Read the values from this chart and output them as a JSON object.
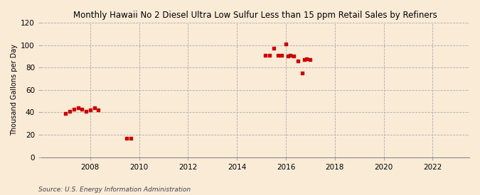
{
  "title": "Monthly Hawaii No 2 Diesel Ultra Low Sulfur Less than 15 ppm Retail Sales by Refiners",
  "ylabel": "Thousand Gallons per Day",
  "source": "Source: U.S. Energy Information Administration",
  "background_color": "#faebd7",
  "plot_bg_color": "#faebd7",
  "point_color": "#cc0000",
  "marker": "s",
  "marker_size": 3,
  "xlim": [
    2006.0,
    2023.5
  ],
  "ylim": [
    0,
    120
  ],
  "xticks": [
    2008,
    2010,
    2012,
    2014,
    2016,
    2018,
    2020,
    2022
  ],
  "yticks": [
    0,
    20,
    40,
    60,
    80,
    100,
    120
  ],
  "x_data": [
    2007.0,
    2007.17,
    2007.33,
    2007.5,
    2007.67,
    2007.83,
    2008.0,
    2008.17,
    2008.33,
    2009.5,
    2009.67,
    2015.17,
    2015.33,
    2015.5,
    2015.67,
    2015.83,
    2016.0,
    2016.08,
    2016.17,
    2016.33,
    2016.5,
    2016.67,
    2016.75,
    2016.83,
    2017.0
  ],
  "y_data": [
    39,
    41,
    43,
    44,
    43,
    41,
    42,
    44,
    42,
    17,
    17,
    91,
    91,
    97,
    91,
    91,
    101,
    90,
    91,
    90,
    86,
    75,
    87,
    88,
    87
  ]
}
